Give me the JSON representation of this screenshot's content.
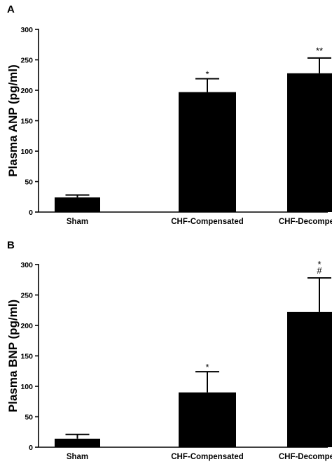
{
  "chart_data": [
    {
      "panel": "A",
      "type": "bar",
      "ylabel": "Plasma ANP (pg/ml)",
      "ylim": [
        0,
        300
      ],
      "yticks": [
        "0",
        "50",
        "100",
        "150",
        "200",
        "250",
        "300"
      ],
      "categories": [
        "Sham",
        "CHF-Compensated",
        "CHF-Decompensated"
      ],
      "values": [
        24,
        197,
        228
      ],
      "errors": [
        4,
        22,
        25
      ],
      "annotations": [
        "",
        "*",
        "**"
      ]
    },
    {
      "panel": "B",
      "type": "bar",
      "ylabel": "Plasma BNP (pg/ml)",
      "ylim": [
        0,
        300
      ],
      "yticks": [
        "0",
        "50",
        "100",
        "150",
        "200",
        "250",
        "300"
      ],
      "categories": [
        "Sham",
        "CHF-Compensated",
        "CHF-Decompensated"
      ],
      "values": [
        14,
        90,
        222
      ],
      "errors": [
        7,
        34,
        56
      ],
      "annotations": [
        "",
        "*",
        "*\n#"
      ]
    }
  ]
}
